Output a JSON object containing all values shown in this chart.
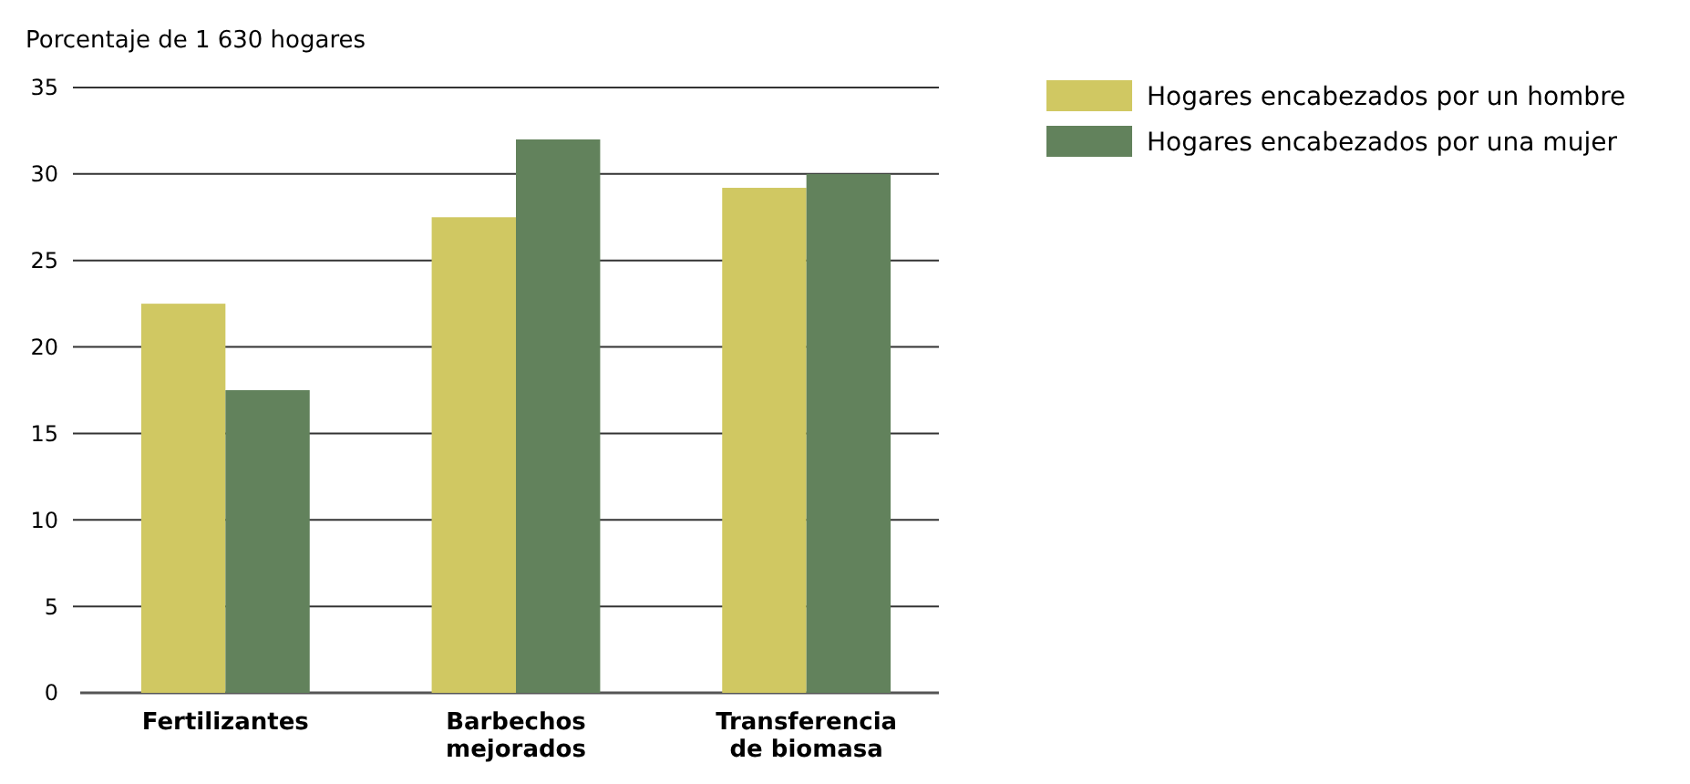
{
  "chart_data": {
    "type": "bar",
    "ylabel": "Porcentaje de 1 630 hogares",
    "categories": [
      "Fertilizantes",
      "Barbechos mejorados",
      "Transferencia de biomasa"
    ],
    "series": [
      {
        "name": "Hogares encabezados por un hombre",
        "color": "#d0c862",
        "values": [
          22.5,
          27.5,
          29.2
        ]
      },
      {
        "name": "Hogares encabezados por una mujer",
        "color": "#62825c",
        "values": [
          17.5,
          32.0,
          30.0
        ]
      }
    ],
    "ylim": [
      0,
      35
    ],
    "yticks": [
      0,
      5,
      10,
      15,
      20,
      25,
      30,
      35
    ],
    "grid": "y",
    "legend": "top right"
  }
}
